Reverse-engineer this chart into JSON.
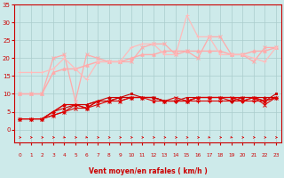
{
  "background_color": "#cdeaea",
  "grid_color": "#aacccc",
  "xlabel": "Vent moyen/en rafales ( km/h )",
  "xlim": [
    -0.5,
    23.5
  ],
  "ylim": [
    0,
    35
  ],
  "yticks": [
    0,
    5,
    10,
    15,
    20,
    25,
    30,
    35
  ],
  "xticks": [
    0,
    1,
    2,
    3,
    4,
    5,
    6,
    7,
    8,
    9,
    10,
    11,
    12,
    13,
    14,
    15,
    16,
    17,
    18,
    19,
    20,
    21,
    22,
    23
  ],
  "series": [
    {
      "x": [
        0,
        1,
        2,
        3,
        4,
        5,
        6,
        7,
        8,
        9,
        10,
        11,
        12,
        13,
        14,
        15,
        16,
        17,
        18,
        19,
        20,
        21,
        22,
        23
      ],
      "y": [
        3,
        3,
        3,
        4,
        5,
        6,
        6,
        7,
        8,
        8,
        9,
        9,
        9,
        8,
        9,
        8,
        9,
        9,
        9,
        9,
        9,
        9,
        7,
        9
      ],
      "color": "#dd0000",
      "marker": "x",
      "lw": 0.8,
      "ms": 2.5
    },
    {
      "x": [
        0,
        1,
        2,
        3,
        4,
        5,
        6,
        7,
        8,
        9,
        10,
        11,
        12,
        13,
        14,
        15,
        16,
        17,
        18,
        19,
        20,
        21,
        22,
        23
      ],
      "y": [
        3,
        3,
        3,
        4,
        5,
        7,
        7,
        8,
        8,
        9,
        9,
        9,
        9,
        8,
        8,
        8,
        8,
        8,
        8,
        8,
        8,
        8,
        8,
        9
      ],
      "color": "#dd0000",
      "marker": "+",
      "lw": 0.8,
      "ms": 2.5
    },
    {
      "x": [
        0,
        1,
        2,
        3,
        4,
        5,
        6,
        7,
        8,
        9,
        10,
        11,
        12,
        13,
        14,
        15,
        16,
        17,
        18,
        19,
        20,
        21,
        22,
        23
      ],
      "y": [
        3,
        3,
        3,
        5,
        6,
        7,
        7,
        8,
        8,
        9,
        10,
        9,
        9,
        8,
        8,
        9,
        9,
        9,
        9,
        9,
        8,
        9,
        8,
        10
      ],
      "color": "#cc0000",
      "marker": "s",
      "lw": 0.8,
      "ms": 1.8
    },
    {
      "x": [
        0,
        1,
        2,
        3,
        4,
        5,
        6,
        7,
        8,
        9,
        10,
        11,
        12,
        13,
        14,
        15,
        16,
        17,
        18,
        19,
        20,
        21,
        22,
        23
      ],
      "y": [
        3,
        3,
        3,
        5,
        7,
        7,
        6,
        8,
        9,
        9,
        9,
        9,
        9,
        8,
        8,
        8,
        9,
        9,
        9,
        8,
        9,
        9,
        9,
        9
      ],
      "color": "#cc0000",
      "marker": "D",
      "lw": 0.8,
      "ms": 1.8
    },
    {
      "x": [
        0,
        1,
        2,
        3,
        4,
        5,
        6,
        7,
        8,
        9,
        10,
        11,
        12,
        13,
        14,
        15,
        16,
        17,
        18,
        19,
        20,
        21,
        22,
        23
      ],
      "y": [
        3,
        3,
        3,
        5,
        7,
        7,
        6,
        8,
        8,
        8,
        9,
        9,
        8,
        8,
        8,
        8,
        9,
        9,
        9,
        9,
        8,
        9,
        8,
        9
      ],
      "color": "#dd0000",
      "marker": "o",
      "lw": 0.8,
      "ms": 1.8
    },
    {
      "x": [
        0,
        1,
        2,
        3,
        4,
        5,
        6,
        7,
        8,
        9,
        10,
        11,
        12,
        13,
        14,
        15,
        16,
        17,
        18,
        19,
        20,
        21,
        22,
        23
      ],
      "y": [
        10,
        10,
        10,
        16,
        17,
        17,
        18,
        19,
        19,
        19,
        20,
        21,
        21,
        22,
        22,
        22,
        22,
        22,
        22,
        21,
        21,
        22,
        22,
        23
      ],
      "color": "#ffaaaa",
      "marker": "^",
      "lw": 1.0,
      "ms": 2.5
    },
    {
      "x": [
        0,
        1,
        2,
        3,
        4,
        5,
        6,
        7,
        8,
        9,
        10,
        11,
        12,
        13,
        14,
        15,
        16,
        17,
        18,
        19,
        20,
        21,
        22,
        23
      ],
      "y": [
        10,
        10,
        10,
        20,
        21,
        8,
        21,
        20,
        19,
        19,
        19,
        23,
        24,
        24,
        21,
        22,
        20,
        26,
        26,
        21,
        21,
        19,
        23,
        23
      ],
      "color": "#ffaaaa",
      "marker": "x",
      "lw": 0.9,
      "ms": 2.5
    },
    {
      "x": [
        0,
        1,
        2,
        3,
        4,
        5,
        6,
        7,
        8,
        9,
        10,
        11,
        12,
        13,
        14,
        15,
        16,
        17,
        18,
        19,
        20,
        21,
        22,
        23
      ],
      "y": [
        16,
        16,
        16,
        17,
        20,
        17,
        14,
        19,
        19,
        19,
        23,
        24,
        24,
        21,
        21,
        32,
        26,
        26,
        21,
        21,
        21,
        20,
        19,
        23
      ],
      "color": "#ffbbbb",
      "marker": "+",
      "lw": 0.9,
      "ms": 2.5
    }
  ],
  "arrow_color": "#dd0000",
  "arrow_directions": [
    0,
    0,
    0,
    0,
    45,
    0,
    45,
    0,
    0,
    0,
    0,
    0,
    0,
    0,
    0,
    0,
    0,
    45,
    0,
    45,
    0,
    0,
    0,
    0
  ]
}
